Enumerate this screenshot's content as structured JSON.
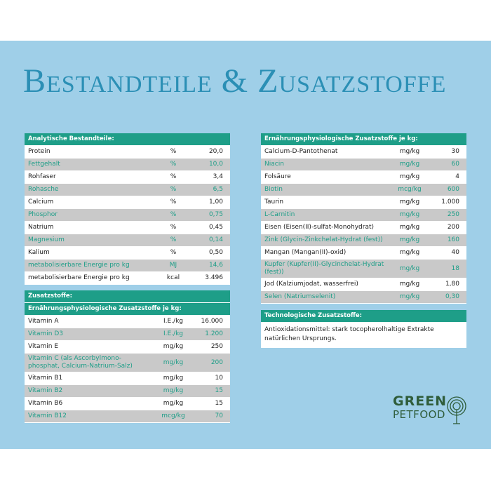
{
  "title": "Bestandteile & Zusatzstoffe",
  "analytical": {
    "header": "Analytische Bestandteile:",
    "rows": [
      [
        "Protein",
        "%",
        "20,0"
      ],
      [
        "Fettgehalt",
        "%",
        "10,0"
      ],
      [
        "Rohfaser",
        "%",
        "3,4"
      ],
      [
        "Rohasche",
        "%",
        "6,5"
      ],
      [
        "Calcium",
        "%",
        "1,00"
      ],
      [
        "Phosphor",
        "%",
        "0,75"
      ],
      [
        "Natrium",
        "%",
        "0,45"
      ],
      [
        "Magnesium",
        "%",
        "0,14"
      ],
      [
        "Kalium",
        "%",
        "0,50"
      ],
      [
        "metabolisierbare Energie pro kg",
        "MJ",
        "14,6"
      ],
      [
        "metabolisierbare Energie pro kg",
        "kcal",
        "3.496"
      ]
    ]
  },
  "additives": {
    "header": "Zusatzstoffe:",
    "subheader": "Ernährungsphysiologische Zusatzstoffe je kg:",
    "rows": [
      [
        "Vitamin A",
        "I.E./kg",
        "16.000"
      ],
      [
        "Vitamin D3",
        "I.E./kg",
        "1.200"
      ],
      [
        "Vitamin E",
        "mg/kg",
        "250"
      ],
      [
        "Vitamin C (als Ascorbylmono-phosphat, Calcium-Natrium-Salz)",
        "mg/kg",
        "200"
      ],
      [
        "Vitamin B1",
        "mg/kg",
        "10"
      ],
      [
        "Vitamin B2",
        "mg/kg",
        "15"
      ],
      [
        "Vitamin B6",
        "mg/kg",
        "15"
      ],
      [
        "Vitamin B12",
        "mcg/kg",
        "70"
      ]
    ]
  },
  "nutritional": {
    "header": "Ernährungsphysiologische Zusatzstoffe je kg:",
    "rows": [
      [
        "Calcium-D-Pantothenat",
        "mg/kg",
        "30"
      ],
      [
        "Niacin",
        "mg/kg",
        "60"
      ],
      [
        "Folsäure",
        "mg/kg",
        "4"
      ],
      [
        "Biotin",
        "mcg/kg",
        "600"
      ],
      [
        "Taurin",
        "mg/kg",
        "1.000"
      ],
      [
        "L-Carnitin",
        "mg/kg",
        "250"
      ],
      [
        "Eisen (Eisen(II)-sulfat-Monohydrat)",
        "mg/kg",
        "200"
      ],
      [
        "Zink (Glycin-Zinkchelat-Hydrat (fest))",
        "mg/kg",
        "160"
      ],
      [
        "Mangan (Mangan(II)-oxid)",
        "mg/kg",
        "40"
      ],
      [
        "Kupfer (Kupfer(II)-Glycinchelat-Hydrat (fest))",
        "mg/kg",
        "18"
      ],
      [
        "Jod (Kalziumjodat, wasserfrei)",
        "mg/kg",
        "1,80"
      ],
      [
        "Selen (Natriumselenit)",
        "mg/kg",
        "0,30"
      ]
    ]
  },
  "technological": {
    "header": "Technologische Zusatzstoffe:",
    "text": "Antioxidationsmittel: stark tocopherolhaltige Extrakte natürlichen Ursprungs."
  },
  "logo": {
    "line1": "GREEN",
    "line2": "PETFOOD"
  }
}
